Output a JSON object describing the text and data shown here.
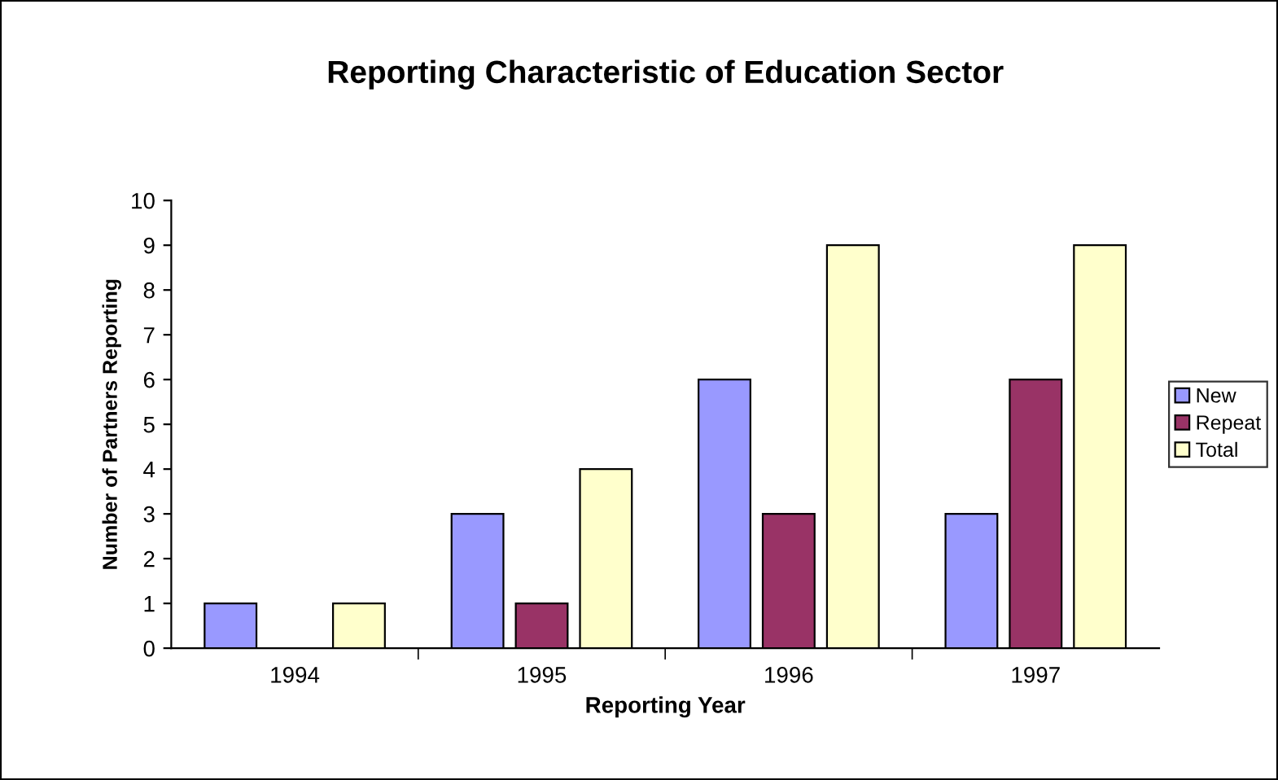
{
  "chart_data": {
    "type": "bar",
    "title": "Reporting Characteristic of Education Sector",
    "xlabel": "Reporting Year",
    "ylabel": "Number of Partners Reporting",
    "categories": [
      "1994",
      "1995",
      "1996",
      "1997"
    ],
    "series": [
      {
        "name": "New",
        "color": "#9999ff",
        "values": [
          1,
          3,
          6,
          3
        ]
      },
      {
        "name": "Repeat",
        "color": "#993366",
        "values": [
          null,
          1,
          3,
          6
        ]
      },
      {
        "name": "Total",
        "color": "#ffffcc",
        "values": [
          1,
          4,
          9,
          9
        ]
      }
    ],
    "ylim": [
      0,
      10
    ],
    "yticks": [
      0,
      1,
      2,
      3,
      4,
      5,
      6,
      7,
      8,
      9,
      10
    ],
    "grid": false,
    "legend": "right"
  }
}
